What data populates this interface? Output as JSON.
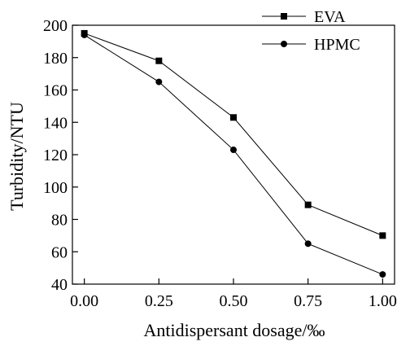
{
  "chart_data": {
    "type": "line",
    "xlabel": "Antidispersant dosage/‰",
    "ylabel": "Turbidity/NTU",
    "xlim": [
      0.0,
      1.0
    ],
    "ylim": [
      40,
      200
    ],
    "x_ticks": [
      "0.00",
      "0.25",
      "0.50",
      "0.75",
      "1.00"
    ],
    "y_ticks": [
      "40",
      "60",
      "80",
      "100",
      "120",
      "140",
      "160",
      "180",
      "200"
    ],
    "legend_position": "top-right",
    "x": [
      0.0,
      0.25,
      0.5,
      0.75,
      1.0
    ],
    "series": [
      {
        "name": "EVA",
        "marker": "square",
        "values": [
          195,
          178,
          143,
          89,
          70
        ]
      },
      {
        "name": "HPMC",
        "marker": "circle",
        "values": [
          194,
          165,
          123,
          65,
          46
        ]
      }
    ]
  }
}
